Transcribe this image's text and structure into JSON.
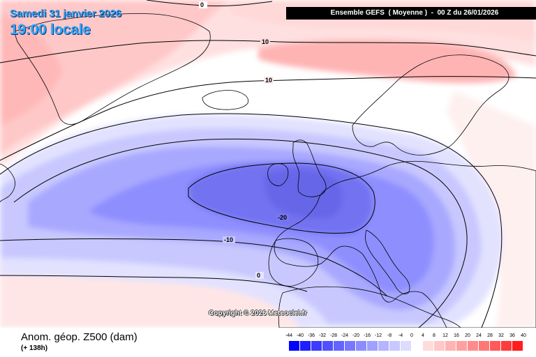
{
  "header": {
    "date_text": "Samedi 31 janvier 2026",
    "time_text": "19:00 locale",
    "run_info": "Ensemble GEFS  ( Moyenne )  -  00 Z du 26/01/2026"
  },
  "map": {
    "copyright": "Copyright © 2026 Meteociel.fr",
    "contour_labels": [
      "0",
      "10",
      "10",
      "-20",
      "-10",
      "0"
    ],
    "colors": {
      "land_outline": "#000000",
      "contour": "#000000"
    }
  },
  "footer": {
    "title": "Anom. géop. Z500 (dam)",
    "lead_time": "(+ 138h)"
  },
  "legend": {
    "labels": [
      "-44",
      "-40",
      "-36",
      "-32",
      "-28",
      "-24",
      "-20",
      "-16",
      "-12",
      "-8",
      "-4",
      "0",
      "4",
      "8",
      "12",
      "16",
      "20",
      "24",
      "28",
      "32",
      "36",
      "40"
    ],
    "colors": [
      "#0000ff",
      "#1e1eff",
      "#3c3cff",
      "#5050ff",
      "#6464ff",
      "#7878ff",
      "#8c8cff",
      "#a0a0ff",
      "#b4b4ff",
      "#c8c8ff",
      "#dcdcff",
      "#ffffff",
      "#ffdcdc",
      "#ffc8c8",
      "#ffb4b4",
      "#ffa0a0",
      "#ff8c8c",
      "#ff7878",
      "#ff5a5a",
      "#ff3c3c",
      "#ff1e1e"
    ]
  }
}
